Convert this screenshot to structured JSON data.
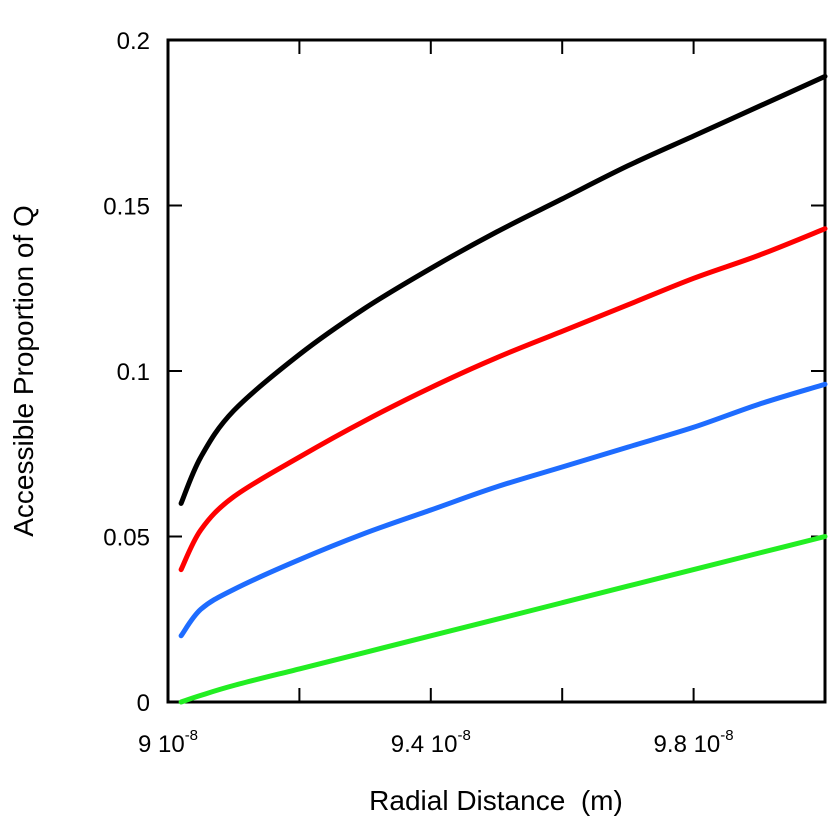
{
  "chart_data": {
    "type": "line",
    "title": "",
    "xlabel": "Radial Distance  (m)",
    "ylabel": "Accessible Proportion of Q",
    "xlim": [
      9e-08,
      1e-07
    ],
    "ylim": [
      0,
      0.2
    ],
    "grid": false,
    "legend": "none",
    "x_ticks": [
      {
        "value": 9e-08,
        "mantissa": "9",
        "base": "10",
        "exponent": "-8"
      },
      {
        "value": 9.4e-08,
        "mantissa": "9.4",
        "base": "10",
        "exponent": "-8"
      },
      {
        "value": 9.8e-08,
        "mantissa": "9.8",
        "base": "10",
        "exponent": "-8"
      }
    ],
    "x_minor_ticks": [
      9.2e-08,
      9.6e-08,
      1e-07
    ],
    "y_ticks": [
      {
        "value": 0,
        "label": "0"
      },
      {
        "value": 0.05,
        "label": "0.05"
      },
      {
        "value": 0.1,
        "label": "0.1"
      },
      {
        "value": 0.15,
        "label": "0.15"
      },
      {
        "value": 0.2,
        "label": "0.2"
      }
    ],
    "x": [
      9.02e-08,
      9.05e-08,
      9.1e-08,
      9.2e-08,
      9.3e-08,
      9.4e-08,
      9.5e-08,
      9.6e-08,
      9.7e-08,
      9.8e-08,
      9.9e-08,
      1e-07
    ],
    "series": [
      {
        "color": "#000000",
        "values": [
          0.06,
          0.074,
          0.088,
          0.105,
          0.119,
          0.131,
          0.142,
          0.152,
          0.162,
          0.171,
          0.18,
          0.189
        ]
      },
      {
        "color": "#ff0000",
        "values": [
          0.04,
          0.052,
          0.062,
          0.074,
          0.085,
          0.095,
          0.104,
          0.112,
          0.12,
          0.128,
          0.135,
          0.143
        ]
      },
      {
        "color": "#1e6cff",
        "values": [
          0.02,
          0.028,
          0.034,
          0.043,
          0.051,
          0.058,
          0.065,
          0.071,
          0.077,
          0.083,
          0.09,
          0.096
        ]
      },
      {
        "color": "#22ee22",
        "values": [
          0.0,
          0.002,
          0.005,
          0.01,
          0.015,
          0.02,
          0.025,
          0.03,
          0.035,
          0.04,
          0.045,
          0.05
        ]
      }
    ]
  }
}
